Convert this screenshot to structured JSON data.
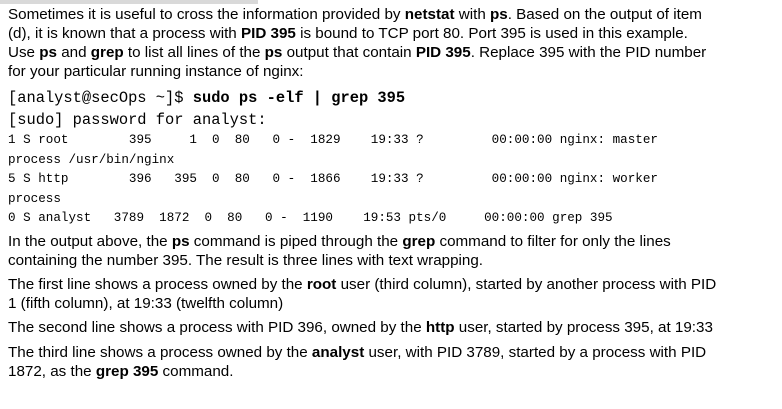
{
  "intro": {
    "l1a": "Sometimes it is useful to cross the information provided by ",
    "l1b": "netstat",
    "l1c": " with ",
    "l1d": "ps",
    "l1e": ". Based on the output of item",
    "l2a": "(d), it is known that a process with ",
    "l2b": "PID 395",
    "l2c": " is bound to TCP port 80. Port 395 is used in this example.",
    "l3a": "Use ",
    "l3b": "ps",
    "l3c": " and ",
    "l3d": "grep",
    "l3e": " to list all lines of the ",
    "l3f": "ps",
    "l3g": " output that contain ",
    "l3h": "PID 395",
    "l3i": ". Replace 395 with the PID number",
    "l4": "for your particular running instance of nginx:"
  },
  "terminal": {
    "prompt": "[analyst@secOps ~]$ ",
    "command": "sudo ps -elf | grep 395",
    "sudo_line": "[sudo] password for analyst:",
    "out1": "1 S root        395     1  0  80   0 -  1829    19:33 ?         00:00:00 nginx: master",
    "out1b": "process /usr/bin/nginx",
    "out2": "5 S http        396   395  0  80   0 -  1866    19:33 ?         00:00:00 nginx: worker",
    "out2b": "process",
    "out3": "0 S analyst   3789  1872  0  80   0 -  1190    19:53 pts/0     00:00:00 grep 395"
  },
  "explain": {
    "e1a": "In the output above, the ",
    "e1b": "ps",
    "e1c": " command is piped through the ",
    "e1d": "grep",
    "e1e": " command to filter for only the lines",
    "e2": "containing the number 395. The result is three lines with text wrapping.",
    "f1a": "The first line shows a process owned by the ",
    "f1b": "root",
    "f1c": " user (third column), started by another process with PID",
    "f2": "1 (fifth column), at 19:33 (twelfth column)",
    "s1a": "The second line shows a process with PID 396, owned by the ",
    "s1b": "http",
    "s1c": " user, started by process 395, at 19:33",
    "t1a": "The third line shows a process owned by the ",
    "t1b": "analyst",
    "t1c": " user, with PID 3789, started by a process with PID",
    "t2a": "1872, as the ",
    "t2b": "grep 395",
    "t2c": " command."
  }
}
